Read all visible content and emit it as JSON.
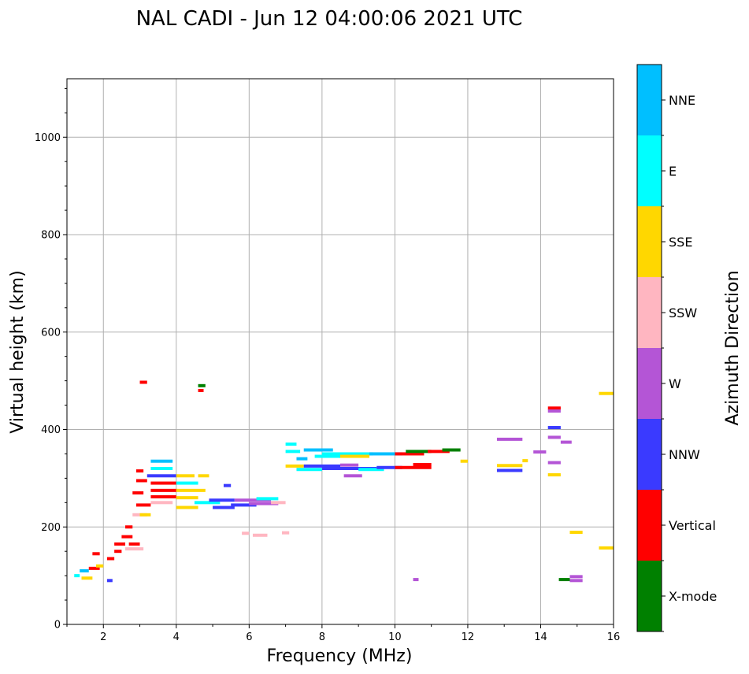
{
  "chart_data": {
    "type": "scatter",
    "title": "NAL CADI - Jun 12 04:00:06 2021 UTC",
    "xlabel": "Frequency (MHz)",
    "ylabel": "Virtual height (km)",
    "xlim": [
      1,
      16
    ],
    "ylim": [
      0,
      1120
    ],
    "xticks": [
      2,
      4,
      6,
      8,
      10,
      12,
      14,
      16
    ],
    "yticks": [
      0,
      200,
      400,
      600,
      800,
      1000
    ],
    "grid": true,
    "colorbar": {
      "label": "Azimuth Direction",
      "categories": [
        {
          "name": "X-mode",
          "color": "#008000"
        },
        {
          "name": "Vertical",
          "color": "#ff0000"
        },
        {
          "name": "NNW",
          "color": "#3a3aff"
        },
        {
          "name": "W",
          "color": "#b455d6"
        },
        {
          "name": "SSW",
          "color": "#ffb6c1"
        },
        {
          "name": "SSE",
          "color": "#ffd700"
        },
        {
          "name": "E",
          "color": "#00ffff"
        },
        {
          "name": "NNE",
          "color": "#00bfff"
        }
      ]
    },
    "segments": [
      {
        "f": 1.2,
        "f2": 1.35,
        "h": 100,
        "dir": "E"
      },
      {
        "f": 1.35,
        "f2": 1.6,
        "h": 110,
        "dir": "NNE"
      },
      {
        "f": 1.4,
        "f2": 1.7,
        "h": 95,
        "dir": "SSE"
      },
      {
        "f": 1.6,
        "f2": 1.9,
        "h": 115,
        "dir": "Vertical"
      },
      {
        "f": 1.8,
        "f2": 2.0,
        "h": 120,
        "dir": "SSE"
      },
      {
        "f": 2.1,
        "f2": 2.25,
        "h": 90,
        "dir": "NNW"
      },
      {
        "f": 1.7,
        "f2": 1.9,
        "h": 145,
        "dir": "Vertical"
      },
      {
        "f": 2.1,
        "f2": 2.3,
        "h": 135,
        "dir": "Vertical"
      },
      {
        "f": 2.3,
        "f2": 2.5,
        "h": 150,
        "dir": "Vertical"
      },
      {
        "f": 2.3,
        "f2": 2.6,
        "h": 165,
        "dir": "Vertical"
      },
      {
        "f": 2.5,
        "f2": 2.8,
        "h": 180,
        "dir": "Vertical"
      },
      {
        "f": 2.6,
        "f2": 3.1,
        "h": 155,
        "dir": "SSW"
      },
      {
        "f": 2.7,
        "f2": 3.0,
        "h": 165,
        "dir": "Vertical"
      },
      {
        "f": 2.6,
        "f2": 2.8,
        "h": 200,
        "dir": "Vertical"
      },
      {
        "f": 2.8,
        "f2": 3.2,
        "h": 225,
        "dir": "SSW"
      },
      {
        "f": 3.0,
        "f2": 3.3,
        "h": 225,
        "dir": "SSE"
      },
      {
        "f": 2.9,
        "f2": 3.3,
        "h": 245,
        "dir": "Vertical"
      },
      {
        "f": 2.8,
        "f2": 3.1,
        "h": 270,
        "dir": "Vertical"
      },
      {
        "f": 2.9,
        "f2": 3.2,
        "h": 295,
        "dir": "Vertical"
      },
      {
        "f": 2.9,
        "f2": 3.1,
        "h": 315,
        "dir": "Vertical"
      },
      {
        "f": 3.0,
        "f2": 3.2,
        "h": 497,
        "dir": "Vertical"
      },
      {
        "f": 3.3,
        "f2": 3.9,
        "h": 335,
        "dir": "NNE"
      },
      {
        "f": 3.3,
        "f2": 3.9,
        "h": 320,
        "dir": "E"
      },
      {
        "f": 3.2,
        "f2": 4.0,
        "h": 305,
        "dir": "NNW"
      },
      {
        "f": 3.3,
        "f2": 4.0,
        "h": 290,
        "dir": "Vertical"
      },
      {
        "f": 3.3,
        "f2": 4.0,
        "h": 275,
        "dir": "Vertical"
      },
      {
        "f": 3.3,
        "f2": 4.0,
        "h": 262,
        "dir": "Vertical"
      },
      {
        "f": 3.3,
        "f2": 3.9,
        "h": 250,
        "dir": "SSW"
      },
      {
        "f": 4.0,
        "f2": 4.5,
        "h": 305,
        "dir": "SSE"
      },
      {
        "f": 4.0,
        "f2": 4.6,
        "h": 290,
        "dir": "E"
      },
      {
        "f": 4.0,
        "f2": 4.8,
        "h": 275,
        "dir": "SSE"
      },
      {
        "f": 4.0,
        "f2": 4.6,
        "h": 260,
        "dir": "SSE"
      },
      {
        "f": 4.0,
        "f2": 4.6,
        "h": 240,
        "dir": "SSE"
      },
      {
        "f": 4.5,
        "f2": 5.2,
        "h": 250,
        "dir": "E"
      },
      {
        "f": 4.6,
        "f2": 4.9,
        "h": 305,
        "dir": "SSE"
      },
      {
        "f": 4.6,
        "f2": 4.8,
        "h": 490,
        "dir": "X-mode"
      },
      {
        "f": 4.6,
        "f2": 4.75,
        "h": 480,
        "dir": "Vertical"
      },
      {
        "f": 4.9,
        "f2": 5.6,
        "h": 255,
        "dir": "NNW"
      },
      {
        "f": 5.0,
        "f2": 5.6,
        "h": 240,
        "dir": "NNW"
      },
      {
        "f": 5.5,
        "f2": 6.2,
        "h": 245,
        "dir": "NNW"
      },
      {
        "f": 5.6,
        "f2": 6.6,
        "h": 255,
        "dir": "W"
      },
      {
        "f": 6.0,
        "f2": 6.8,
        "h": 248,
        "dir": "W"
      },
      {
        "f": 6.2,
        "f2": 6.8,
        "h": 258,
        "dir": "E"
      },
      {
        "f": 6.6,
        "f2": 7.0,
        "h": 250,
        "dir": "SSW"
      },
      {
        "f": 5.3,
        "f2": 5.5,
        "h": 285,
        "dir": "NNW"
      },
      {
        "f": 5.8,
        "f2": 6.0,
        "h": 187,
        "dir": "SSW"
      },
      {
        "f": 6.1,
        "f2": 6.5,
        "h": 183,
        "dir": "SSW"
      },
      {
        "f": 6.9,
        "f2": 7.1,
        "h": 188,
        "dir": "SSW"
      },
      {
        "f": 7.0,
        "f2": 7.3,
        "h": 370,
        "dir": "E"
      },
      {
        "f": 7.0,
        "f2": 7.4,
        "h": 355,
        "dir": "E"
      },
      {
        "f": 7.3,
        "f2": 7.6,
        "h": 340,
        "dir": "NNE"
      },
      {
        "f": 7.5,
        "f2": 8.3,
        "h": 358,
        "dir": "NNE"
      },
      {
        "f": 8.0,
        "f2": 9.4,
        "h": 350,
        "dir": "E"
      },
      {
        "f": 8.5,
        "f2": 9.3,
        "h": 345,
        "dir": "SSE"
      },
      {
        "f": 7.8,
        "f2": 8.5,
        "h": 345,
        "dir": "E"
      },
      {
        "f": 9.3,
        "f2": 10.2,
        "h": 350,
        "dir": "NNE"
      },
      {
        "f": 10.0,
        "f2": 10.8,
        "h": 350,
        "dir": "Vertical"
      },
      {
        "f": 10.3,
        "f2": 11.0,
        "h": 355,
        "dir": "X-mode"
      },
      {
        "f": 10.9,
        "f2": 11.5,
        "h": 355,
        "dir": "Vertical"
      },
      {
        "f": 11.3,
        "f2": 11.8,
        "h": 358,
        "dir": "X-mode"
      },
      {
        "f": 11.8,
        "f2": 12.0,
        "h": 335,
        "dir": "SSE"
      },
      {
        "f": 7.0,
        "f2": 7.5,
        "h": 325,
        "dir": "SSE"
      },
      {
        "f": 7.5,
        "f2": 8.5,
        "h": 325,
        "dir": "NNW"
      },
      {
        "f": 7.3,
        "f2": 8.0,
        "h": 318,
        "dir": "E"
      },
      {
        "f": 8.0,
        "f2": 9.5,
        "h": 320,
        "dir": "NNW"
      },
      {
        "f": 8.5,
        "f2": 9.0,
        "h": 327,
        "dir": "W"
      },
      {
        "f": 9.0,
        "f2": 9.7,
        "h": 318,
        "dir": "E"
      },
      {
        "f": 9.5,
        "f2": 10.2,
        "h": 322,
        "dir": "NNW"
      },
      {
        "f": 10.0,
        "f2": 11.0,
        "h": 322,
        "dir": "Vertical"
      },
      {
        "f": 10.5,
        "f2": 11.0,
        "h": 328,
        "dir": "Vertical"
      },
      {
        "f": 8.6,
        "f2": 9.1,
        "h": 305,
        "dir": "W"
      },
      {
        "f": 10.5,
        "f2": 10.65,
        "h": 92,
        "dir": "W"
      },
      {
        "f": 12.8,
        "f2": 13.5,
        "h": 380,
        "dir": "W"
      },
      {
        "f": 12.8,
        "f2": 13.5,
        "h": 326,
        "dir": "SSE"
      },
      {
        "f": 12.8,
        "f2": 13.5,
        "h": 316,
        "dir": "NNW"
      },
      {
        "f": 13.5,
        "f2": 13.65,
        "h": 336,
        "dir": "SSE"
      },
      {
        "f": 13.8,
        "f2": 14.15,
        "h": 354,
        "dir": "W"
      },
      {
        "f": 14.2,
        "f2": 14.55,
        "h": 444,
        "dir": "Vertical"
      },
      {
        "f": 14.2,
        "f2": 14.55,
        "h": 438,
        "dir": "W"
      },
      {
        "f": 14.2,
        "f2": 14.55,
        "h": 404,
        "dir": "NNW"
      },
      {
        "f": 14.2,
        "f2": 14.55,
        "h": 384,
        "dir": "W"
      },
      {
        "f": 14.55,
        "f2": 14.85,
        "h": 374,
        "dir": "W"
      },
      {
        "f": 14.2,
        "f2": 14.55,
        "h": 332,
        "dir": "W"
      },
      {
        "f": 14.2,
        "f2": 14.55,
        "h": 307,
        "dir": "SSE"
      },
      {
        "f": 14.8,
        "f2": 15.15,
        "h": 189,
        "dir": "SSE"
      },
      {
        "f": 14.5,
        "f2": 14.8,
        "h": 92,
        "dir": "X-mode"
      },
      {
        "f": 14.8,
        "f2": 15.15,
        "h": 98,
        "dir": "W"
      },
      {
        "f": 14.8,
        "f2": 15.15,
        "h": 90,
        "dir": "W"
      },
      {
        "f": 15.6,
        "f2": 16.0,
        "h": 474,
        "dir": "SSE"
      },
      {
        "f": 15.6,
        "f2": 16.0,
        "h": 157,
        "dir": "SSE"
      }
    ]
  }
}
